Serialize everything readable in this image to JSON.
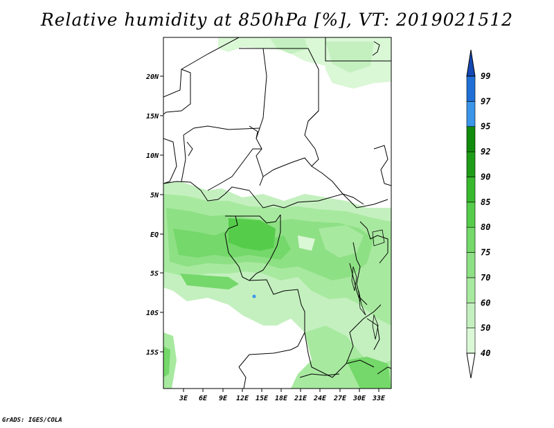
{
  "title": "Relative humidity at 850hPa [%], VT: 2019021512",
  "credit": "GrADS: IGES/COLA",
  "map": {
    "lat_labels": [
      "20N",
      "15N",
      "10N",
      "5N",
      "EQ",
      "5S",
      "10S",
      "15S"
    ],
    "lon_labels": [
      "3E",
      "6E",
      "9E",
      "12E",
      "15E",
      "18E",
      "21E",
      "24E",
      "27E",
      "30E",
      "33E"
    ]
  },
  "colorbar": {
    "levels": [
      "40",
      "50",
      "60",
      "70",
      "75",
      "80",
      "85",
      "90",
      "92",
      "95",
      "97",
      "99"
    ],
    "colors": [
      "#f0fff0",
      "#daf7d6",
      "#c4f0bf",
      "#a8e9a0",
      "#8ee085",
      "#74d86a",
      "#55cc4a",
      "#38b92d",
      "#1f9c17",
      "#118b0c",
      "#3b95e8",
      "#1f6fd6",
      "#1448b4"
    ]
  }
}
